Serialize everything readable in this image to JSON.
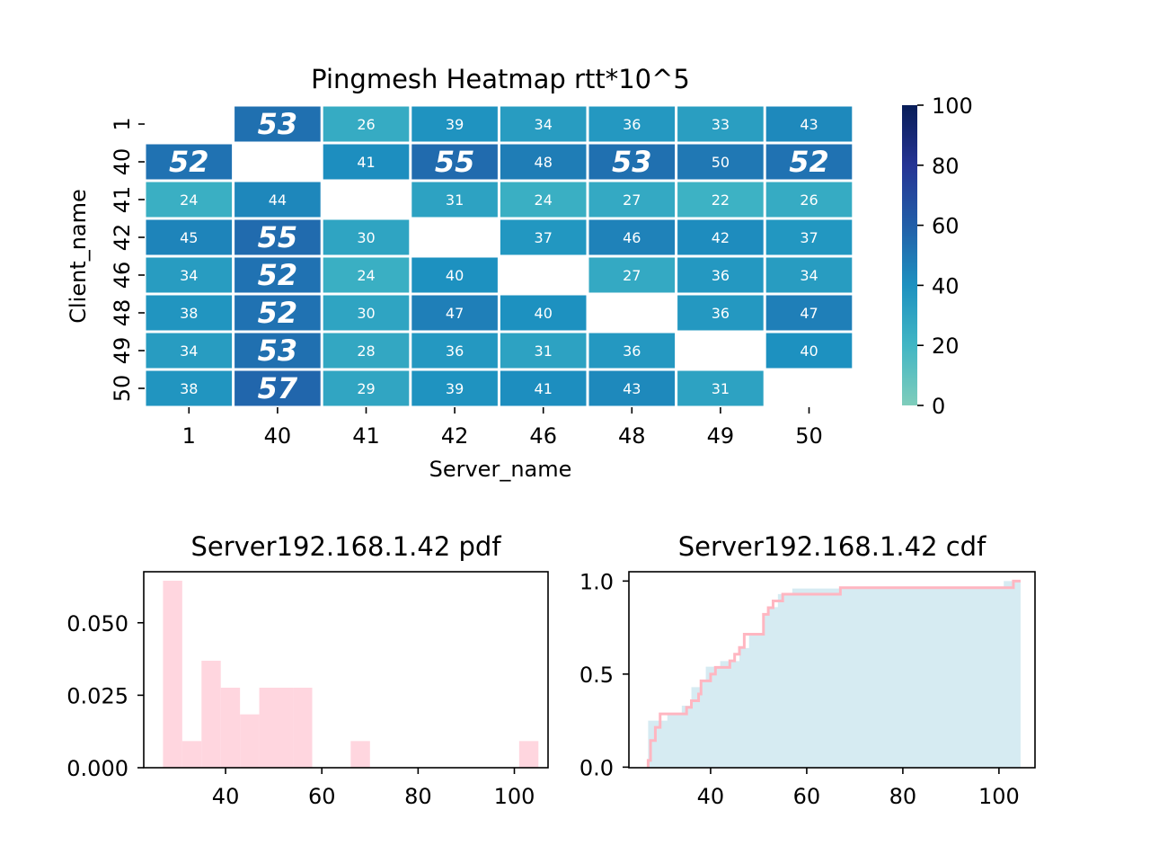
{
  "chart_data": [
    {
      "type": "heatmap",
      "title": "Pingmesh Heatmap rtt*10^5",
      "xlabel": "Server_name",
      "ylabel": "Client_name",
      "x_categories": [
        "1",
        "40",
        "41",
        "42",
        "46",
        "48",
        "49",
        "50"
      ],
      "y_categories": [
        "1",
        "40",
        "41",
        "42",
        "46",
        "48",
        "49",
        "50"
      ],
      "values": [
        [
          null,
          53,
          26,
          39,
          34,
          36,
          33,
          43
        ],
        [
          52,
          null,
          41,
          55,
          48,
          53,
          50,
          52
        ],
        [
          24,
          44,
          null,
          31,
          24,
          27,
          22,
          26
        ],
        [
          45,
          55,
          30,
          null,
          37,
          46,
          42,
          37
        ],
        [
          34,
          52,
          24,
          40,
          null,
          27,
          36,
          34
        ],
        [
          38,
          52,
          30,
          47,
          40,
          null,
          36,
          47
        ],
        [
          34,
          53,
          28,
          36,
          31,
          36,
          null,
          40
        ],
        [
          38,
          57,
          29,
          39,
          41,
          43,
          31,
          null
        ]
      ],
      "highlight_threshold": 51,
      "colorbar": {
        "range": [
          0,
          100
        ],
        "ticks": [
          "0",
          "20",
          "40",
          "60",
          "80",
          "100"
        ]
      },
      "colors": {
        "low": "#7fcdbb",
        "mid": "#1d91c0",
        "high": "#081d58"
      }
    },
    {
      "type": "bar",
      "title": "Server192.168.1.42 pdf",
      "bins": [
        {
          "x0": 27,
          "x1": 31,
          "y": 0.0645
        },
        {
          "x0": 31,
          "x1": 35,
          "y": 0.0092
        },
        {
          "x0": 35,
          "x1": 39,
          "y": 0.0369
        },
        {
          "x0": 39,
          "x1": 43,
          "y": 0.0276
        },
        {
          "x0": 43,
          "x1": 47,
          "y": 0.0184
        },
        {
          "x0": 47,
          "x1": 51,
          "y": 0.0276
        },
        {
          "x0": 51,
          "x1": 54,
          "y": 0.0276
        },
        {
          "x0": 54,
          "x1": 58,
          "y": 0.0276
        },
        {
          "x0": 58,
          "x1": 62,
          "y": 0
        },
        {
          "x0": 62,
          "x1": 66,
          "y": 0
        },
        {
          "x0": 66,
          "x1": 70,
          "y": 0.0092
        },
        {
          "x0": 70,
          "x1": 101,
          "y": 0
        },
        {
          "x0": 101,
          "x1": 105,
          "y": 0.0092
        }
      ],
      "xlim": [
        23,
        107
      ],
      "ylim": [
        0,
        0.0645
      ],
      "x_ticks": [
        "40",
        "60",
        "80",
        "100"
      ],
      "y_ticks": [
        "0.000",
        "0.025",
        "0.050"
      ],
      "colors": {
        "bar": "#ffd6df"
      }
    },
    {
      "type": "line",
      "title": "Server192.168.1.42 cdf",
      "step_x": [
        27,
        27.5,
        28.5,
        29.5,
        31,
        35,
        36,
        37.5,
        38,
        40,
        41,
        42,
        44,
        45,
        46,
        47,
        48,
        51,
        52,
        53,
        55,
        67,
        103,
        104.5
      ],
      "step_y": [
        0.036,
        0.143,
        0.214,
        0.286,
        0.286,
        0.321,
        0.357,
        0.393,
        0.464,
        0.5,
        0.536,
        0.536,
        0.571,
        0.607,
        0.643,
        0.714,
        0.714,
        0.821,
        0.857,
        0.893,
        0.929,
        0.964,
        1.0,
        1.0
      ],
      "bg_steps": [
        [
          27,
          0.25
        ],
        [
          31,
          0.28
        ],
        [
          34,
          0.33
        ],
        [
          36,
          0.43
        ],
        [
          38,
          0.46
        ],
        [
          39,
          0.54
        ],
        [
          42,
          0.57
        ],
        [
          46,
          0.64
        ],
        [
          48,
          0.72
        ],
        [
          51,
          0.82
        ],
        [
          52,
          0.86
        ],
        [
          54,
          0.93
        ],
        [
          57,
          0.96
        ],
        [
          101,
          1.0
        ],
        [
          104.5,
          1.0
        ]
      ],
      "xlim": [
        23,
        107.5
      ],
      "ylim": [
        -0.003,
        1.05
      ],
      "x_ticks": [
        "40",
        "60",
        "80",
        "100"
      ],
      "y_ticks": [
        "0.0",
        "0.5",
        "1.0"
      ],
      "colors": {
        "line": "#ffb6c1",
        "fill": "#add8e6"
      }
    }
  ]
}
